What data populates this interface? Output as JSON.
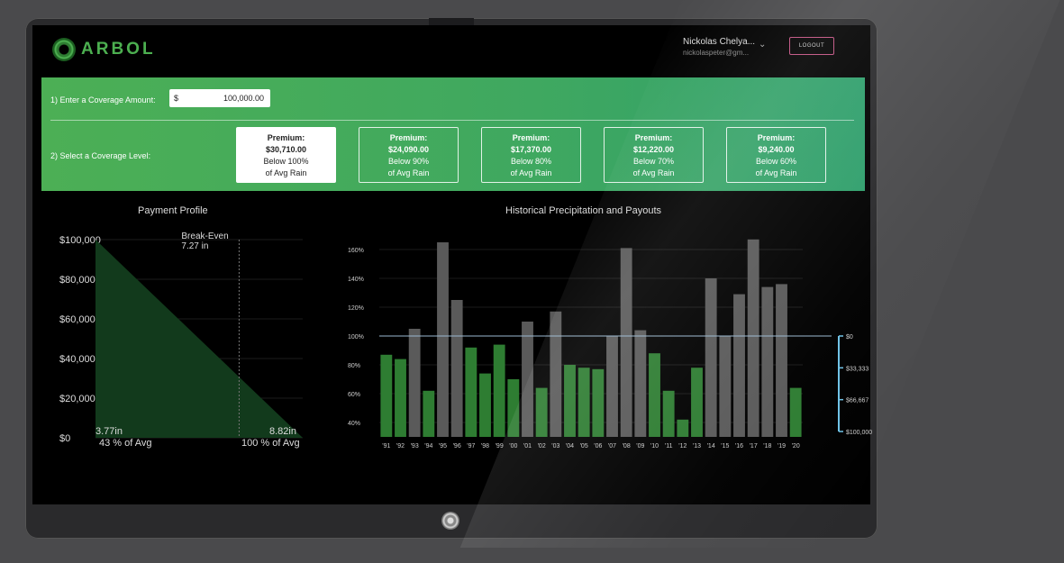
{
  "header": {
    "logo_text": "ARBOL",
    "user_name": "Nickolas Chelya...",
    "user_email": "nickolaspeter@gm...",
    "logout_label": "LOGOUT"
  },
  "coverage": {
    "step1_label": "1) Enter a Coverage Amount:",
    "currency": "$",
    "amount": "100,000.00",
    "step2_label": "2) Select a Coverage Level:",
    "options": [
      {
        "premium_label": "Premium:",
        "premium": "$30,710.00",
        "below": "Below 100%",
        "avg": "of Avg Rain",
        "selected": true
      },
      {
        "premium_label": "Premium:",
        "premium": "$24,090.00",
        "below": "Below 90%",
        "avg": "of Avg Rain",
        "selected": false
      },
      {
        "premium_label": "Premium:",
        "premium": "$17,370.00",
        "below": "Below 80%",
        "avg": "of Avg Rain",
        "selected": false
      },
      {
        "premium_label": "Premium:",
        "premium": "$12,220.00",
        "below": "Below 70%",
        "avg": "of Avg Rain",
        "selected": false
      },
      {
        "premium_label": "Premium:",
        "premium": "$9,240.00",
        "below": "Below 60%",
        "avg": "of Avg Rain",
        "selected": false
      }
    ]
  },
  "colors": {
    "green_bar": "#2e7d32",
    "grey_bar": "#5a5a5a",
    "payout_area": "#123a1c",
    "ref_line": "#9ab8d0"
  },
  "chart_data": [
    {
      "type": "area",
      "title": "Payment Profile",
      "y_ticks": [
        "$100,000",
        "$80,000",
        "$60,000",
        "$40,000",
        "$20,000",
        "$0"
      ],
      "ylim": [
        0,
        100000
      ],
      "x": [
        3.77,
        8.82
      ],
      "y": [
        100000,
        0
      ],
      "annotations": {
        "break_even": "Break-Even",
        "break_even_value": "7.27 in",
        "break_even_x": 7.27,
        "left_x_label": "3.77in",
        "left_pct_label": "43 % of Avg",
        "right_x_label": "8.82in",
        "right_pct_label": "100 % of Avg"
      }
    },
    {
      "type": "bar",
      "title": "Historical Precipitation and Payouts",
      "categories": [
        "'91",
        "'92",
        "'93",
        "'94",
        "'95",
        "'96",
        "'97",
        "'98",
        "'99",
        "'00",
        "'01",
        "'02",
        "'03",
        "'04",
        "'05",
        "'06",
        "'07",
        "'08",
        "'09",
        "'10",
        "'11",
        "'12",
        "'13",
        "'14",
        "'15",
        "'16",
        "'17",
        "'18",
        "'19",
        "'20"
      ],
      "values": [
        87,
        84,
        105,
        62,
        165,
        125,
        92,
        74,
        94,
        70,
        110,
        64,
        117,
        80,
        78,
        77,
        100,
        161,
        104,
        88,
        62,
        42,
        78,
        140,
        100,
        129,
        167,
        134,
        136,
        64
      ],
      "ylabel_unit": "%",
      "y_ticks": [
        "160%",
        "140%",
        "120%",
        "100%",
        "80%",
        "60%",
        "40%"
      ],
      "ylim": [
        30,
        170
      ],
      "reference_line": 100,
      "right_axis_ticks": [
        "$0",
        "$33,333",
        "$66,667",
        "$100,000"
      ]
    }
  ]
}
